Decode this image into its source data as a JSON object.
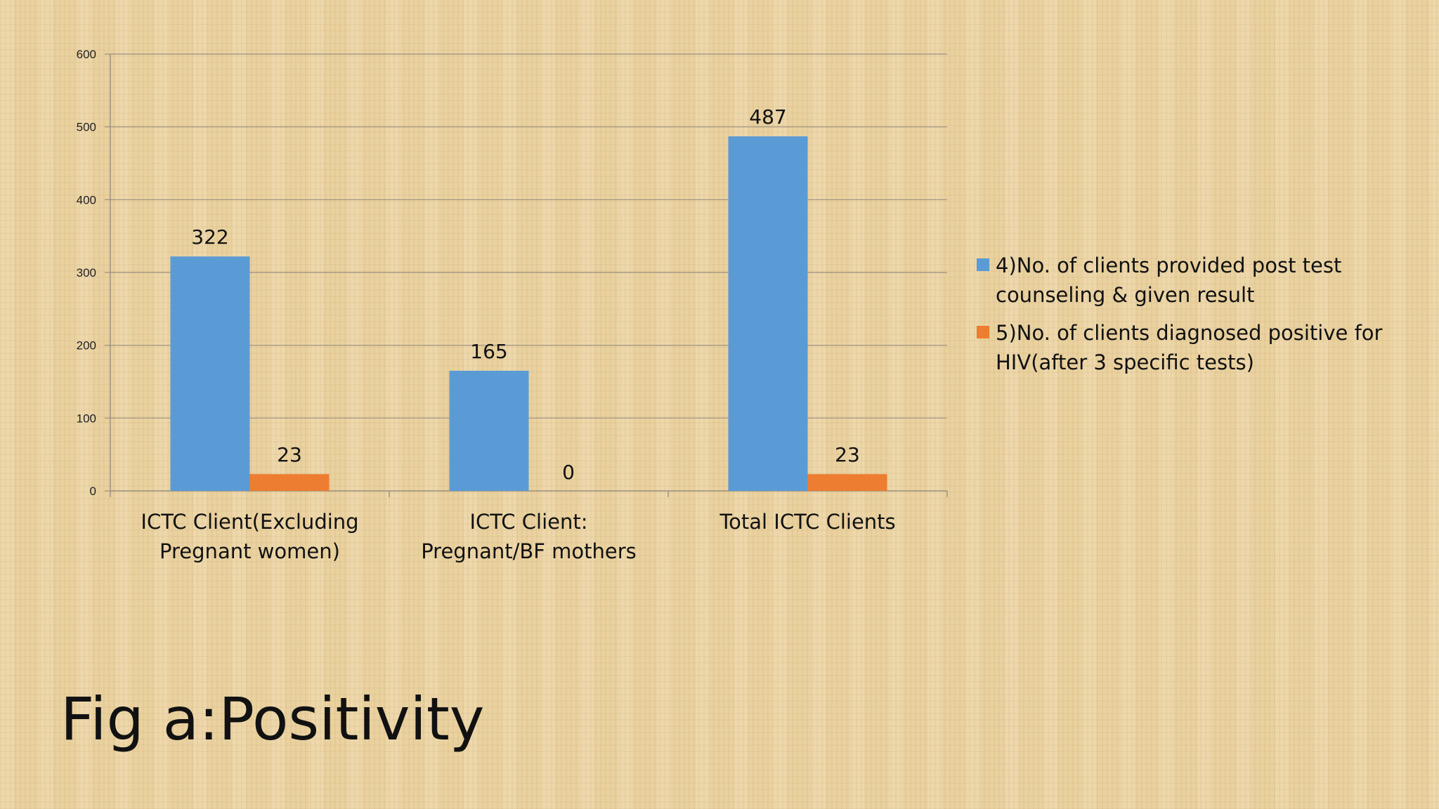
{
  "slide": {
    "caption": "Fig a:Positivity"
  },
  "chart_data": {
    "type": "bar",
    "title": "",
    "xlabel": "",
    "ylabel": "",
    "ylim": [
      0,
      600
    ],
    "yticks": [
      0,
      100,
      200,
      300,
      400,
      500,
      600
    ],
    "grid": true,
    "legend_position": "right",
    "categories": [
      [
        "ICTC Client(Excluding",
        "Pregnant women)"
      ],
      [
        "ICTC Client:",
        "Pregnant/BF mothers"
      ],
      [
        "Total ICTC Clients"
      ]
    ],
    "series": [
      {
        "name": [
          "4)No. of clients provided post test",
          "counseling & given result"
        ],
        "color": "#5b9bd5",
        "values": [
          322,
          165,
          487
        ]
      },
      {
        "name": [
          "5)No. of clients diagnosed positive for",
          "HIV(after 3 specific tests)"
        ],
        "color": "#ed7d31",
        "values": [
          23,
          0,
          23
        ]
      }
    ]
  }
}
